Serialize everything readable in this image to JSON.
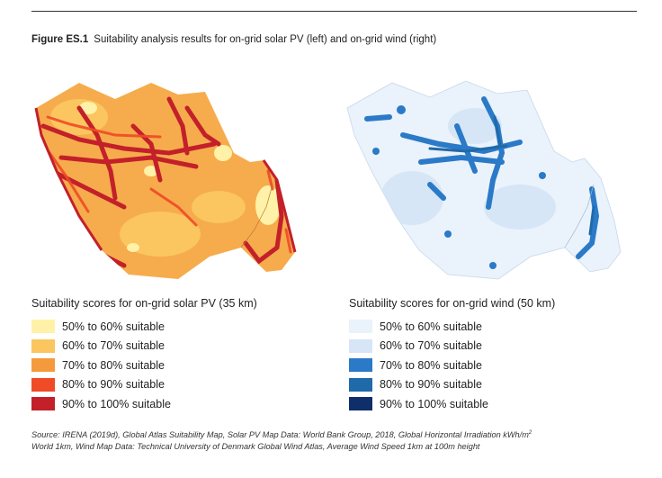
{
  "figure": {
    "label": "Figure ES.1",
    "caption": "Suitability analysis results for on-grid solar PV (left) and on-grid wind (right)"
  },
  "legends": {
    "solar": {
      "title": "Suitability scores for on-grid solar PV (35 km)",
      "items": [
        {
          "label": "50% to 60% suitable",
          "color": "#fff2a8"
        },
        {
          "label": "60% to 70% suitable",
          "color": "#fbc55f"
        },
        {
          "label": "70% to 80% suitable",
          "color": "#f59a3c"
        },
        {
          "label": "80% to 90% suitable",
          "color": "#ef4b26"
        },
        {
          "label": "90% to 100% suitable",
          "color": "#c3202a"
        }
      ]
    },
    "wind": {
      "title": "Suitability scores for on-grid wind (50 km)",
      "items": [
        {
          "label": "50% to 60% suitable",
          "color": "#eaf2fb"
        },
        {
          "label": "60% to 70% suitable",
          "color": "#d6e6f6"
        },
        {
          "label": "70% to 80% suitable",
          "color": "#2a7ac8"
        },
        {
          "label": "80% to 90% suitable",
          "color": "#1f6aa8"
        },
        {
          "label": "90% to 100% suitable",
          "color": "#0e2f6a"
        }
      ]
    }
  },
  "source": {
    "line1": "Source: IRENA (2019d), Global Atlas Suitability Map, Solar PV Map Data: World Bank Group, 2018, Global Horizontal Irradiation kWh/m",
    "sup": "2",
    "line2": "World 1km, Wind Map Data: Technical University of Denmark Global Wind Atlas, Average Wind Speed 1km at 100m height"
  }
}
